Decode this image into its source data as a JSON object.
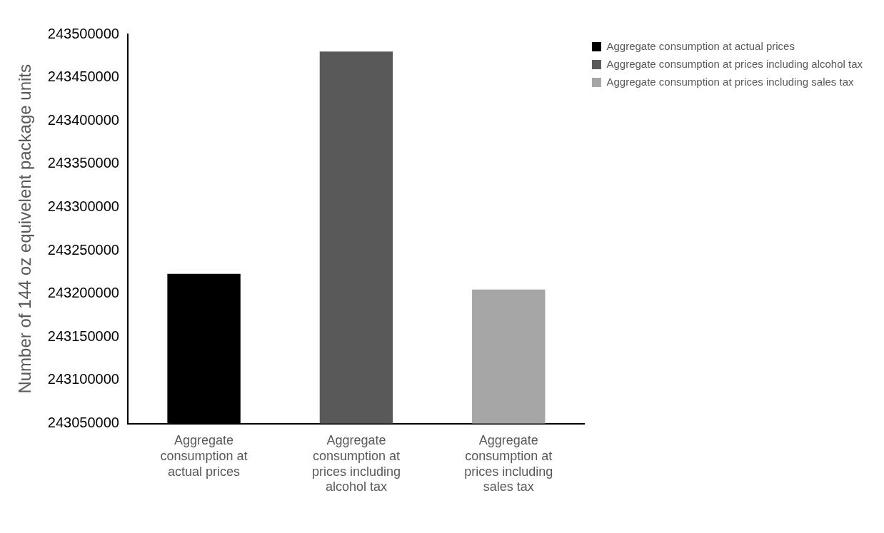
{
  "chart_data": {
    "type": "bar",
    "ylabel": "Number of 144 oz equivelent package units",
    "categories": [
      "Aggregate consumption at actual prices",
      "Aggregate consumption at prices including alcohol tax",
      "Aggregate consumption at prices including sales tax"
    ],
    "series": [
      {
        "name": "Aggregate consumption at actual prices",
        "color": "#000000",
        "values": [
          243223000,
          null,
          null
        ]
      },
      {
        "name": "Aggregate consumption at prices including alcohol tax",
        "color": "#595959",
        "values": [
          null,
          243480000,
          null
        ]
      },
      {
        "name": "Aggregate consumption at prices including sales tax",
        "color": "#a6a6a6",
        "values": [
          null,
          null,
          243205000
        ]
      }
    ],
    "ylim": [
      243050000,
      243500000
    ],
    "yticks": [
      243050000,
      243100000,
      243150000,
      243200000,
      243250000,
      243300000,
      243350000,
      243400000,
      243450000,
      243500000
    ],
    "grid": false,
    "legend": "top right"
  }
}
